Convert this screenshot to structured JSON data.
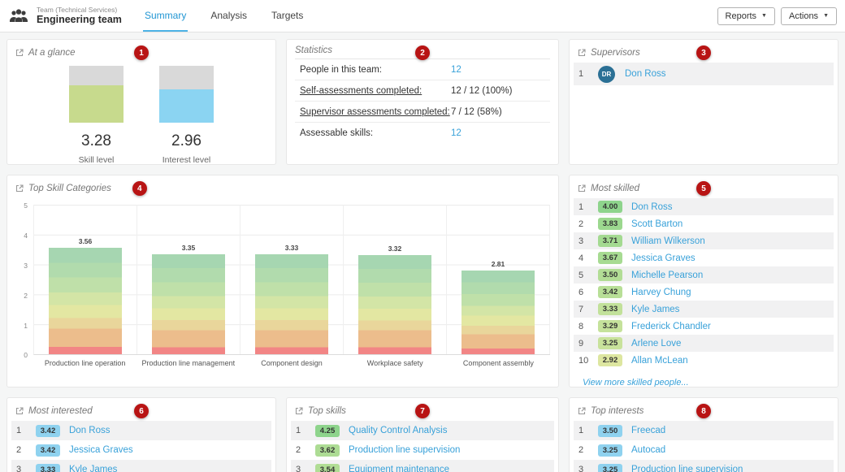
{
  "header": {
    "team_type": "Team (Technical Services)",
    "team_name": "Engineering team",
    "tabs": [
      {
        "label": "Summary",
        "active": true
      },
      {
        "label": "Analysis",
        "active": false
      },
      {
        "label": "Targets",
        "active": false
      }
    ],
    "reports_button": "Reports",
    "actions_button": "Actions"
  },
  "panels": {
    "at_a_glance": {
      "title": "At a glance",
      "marker": "1",
      "max": 5,
      "gauges": [
        {
          "value": "3.28",
          "label": "Skill level",
          "color": "#c7da8d"
        },
        {
          "value": "2.96",
          "label": "Interest level",
          "color": "#8bd4f2"
        }
      ]
    },
    "statistics": {
      "title": "Statistics",
      "marker": "2",
      "rows": [
        {
          "label": "People in this team:",
          "value": "12"
        },
        {
          "label": "Self-assessments completed:",
          "value": "12 / 12 (100%)"
        },
        {
          "label": "Supervisor assessments completed:",
          "value": "7 / 12 (58%)"
        },
        {
          "label": "Assessable skills:",
          "value": "12"
        }
      ]
    },
    "supervisors": {
      "title": "Supervisors",
      "marker": "3",
      "rows": [
        {
          "rank": "1",
          "initials": "DR",
          "name": "Don Ross",
          "avatar_color": "#2b7095"
        }
      ]
    },
    "top_skill_categories": {
      "title": "Top Skill Categories",
      "marker": "4"
    },
    "most_skilled": {
      "title": "Most skilled",
      "marker": "5",
      "rows": [
        {
          "rank": "1",
          "score": "4.00",
          "name": "Don Ross",
          "badge_color": "#8ed48c"
        },
        {
          "rank": "2",
          "score": "3.83",
          "name": "Scott Barton",
          "badge_color": "#9cd88f"
        },
        {
          "rank": "3",
          "score": "3.71",
          "name": "William Wilkerson",
          "badge_color": "#a4da91"
        },
        {
          "rank": "4",
          "score": "3.67",
          "name": "Jessica Graves",
          "badge_color": "#a7db92"
        },
        {
          "rank": "5",
          "score": "3.50",
          "name": "Michelle Pearson",
          "badge_color": "#b2dd95"
        },
        {
          "rank": "6",
          "score": "3.42",
          "name": "Harvey Chung",
          "badge_color": "#b8df97"
        },
        {
          "rank": "7",
          "score": "3.33",
          "name": "Kyle James",
          "badge_color": "#c2e19a"
        },
        {
          "rank": "8",
          "score": "3.29",
          "name": "Frederick Chandler",
          "badge_color": "#c5e29b"
        },
        {
          "rank": "9",
          "score": "3.25",
          "name": "Arlene Love",
          "badge_color": "#c8e29b"
        },
        {
          "rank": "10",
          "score": "2.92",
          "name": "Allan McLean",
          "badge_color": "#dde6a0"
        }
      ],
      "footer_link": "View more skilled people..."
    },
    "most_interested": {
      "title": "Most interested",
      "marker": "6",
      "rows": [
        {
          "rank": "1",
          "score": "3.42",
          "name": "Don Ross",
          "badge_color": "#8fd2ef"
        },
        {
          "rank": "2",
          "score": "3.42",
          "name": "Jessica Graves",
          "badge_color": "#8fd2ef"
        },
        {
          "rank": "3",
          "score": "3.33",
          "name": "Kyle James",
          "badge_color": "#8fd2ef"
        }
      ]
    },
    "top_skills": {
      "title": "Top skills",
      "marker": "7",
      "rows": [
        {
          "rank": "1",
          "score": "4.25",
          "name": "Quality Control Analysis",
          "badge_color": "#8ed48c"
        },
        {
          "rank": "2",
          "score": "3.62",
          "name": "Production line supervision",
          "badge_color": "#addc94"
        },
        {
          "rank": "3",
          "score": "3.54",
          "name": "Equipment maintenance",
          "badge_color": "#b1dd95"
        }
      ]
    },
    "top_interests": {
      "title": "Top interests",
      "marker": "8",
      "rows": [
        {
          "rank": "1",
          "score": "3.50",
          "name": "Freecad",
          "badge_color": "#8fd2ef"
        },
        {
          "rank": "2",
          "score": "3.25",
          "name": "Autocad",
          "badge_color": "#8fd2ef"
        },
        {
          "rank": "3",
          "score": "3.25",
          "name": "Production line supervision",
          "badge_color": "#8fd2ef"
        }
      ]
    }
  },
  "chart_data": {
    "type": "bar",
    "title": "Top Skill Categories",
    "categories": [
      "Production line operation",
      "Production line management",
      "Component design",
      "Workplace safety",
      "Component assembly"
    ],
    "values": [
      3.56,
      3.35,
      3.33,
      3.32,
      2.81
    ],
    "value_labels": [
      "3.56",
      "3.35",
      "3.33",
      "3.32",
      "2.81"
    ],
    "xlabel": "",
    "ylabel": "",
    "ylim": [
      0,
      5
    ],
    "yticks": [
      "5",
      "4",
      "3",
      "2",
      "1",
      "0"
    ],
    "grid": true,
    "legend_position": "none",
    "bar_gradient": [
      {
        "color": "#a6d6b1",
        "to": 14
      },
      {
        "color": "#b1dbad",
        "to": 28
      },
      {
        "color": "#bfe0a9",
        "to": 42
      },
      {
        "color": "#d3e5a6",
        "to": 54
      },
      {
        "color": "#e3e7a2",
        "to": 66
      },
      {
        "color": "#e9d69b",
        "to": 76
      },
      {
        "color": "#ecbd8c",
        "to": 93
      },
      {
        "color": "#f28585",
        "to": 100
      }
    ]
  }
}
